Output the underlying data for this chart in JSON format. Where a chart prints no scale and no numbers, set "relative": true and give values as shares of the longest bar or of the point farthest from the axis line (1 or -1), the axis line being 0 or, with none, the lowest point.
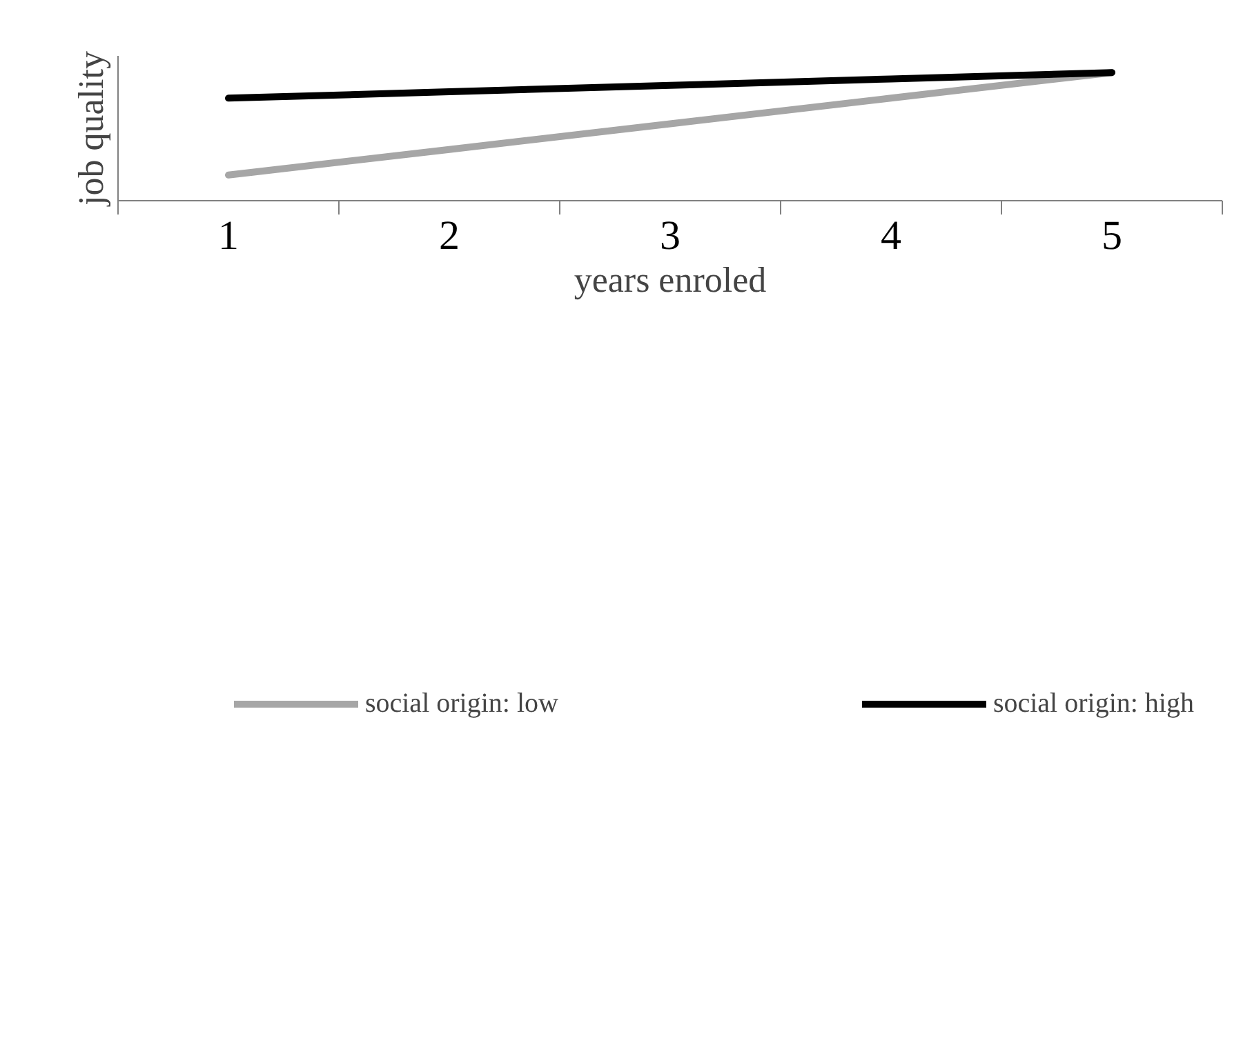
{
  "chart_data": {
    "type": "line",
    "relative": true,
    "xlabel": "years enroled",
    "ylabel": "job quality",
    "categories": [
      "1",
      "2",
      "3",
      "4",
      "5"
    ],
    "series": [
      {
        "name": "social origin: low",
        "color": "#a6a6a6",
        "values": [
          0.2,
          0.4,
          0.6,
          0.8,
          1.0
        ]
      },
      {
        "name": "social origin: high",
        "color": "#000000",
        "values": [
          0.8,
          0.85,
          0.9,
          0.95,
          1.0
        ]
      }
    ],
    "legend": "bottom",
    "grid": false,
    "marker": "none",
    "line_style": "solid"
  }
}
